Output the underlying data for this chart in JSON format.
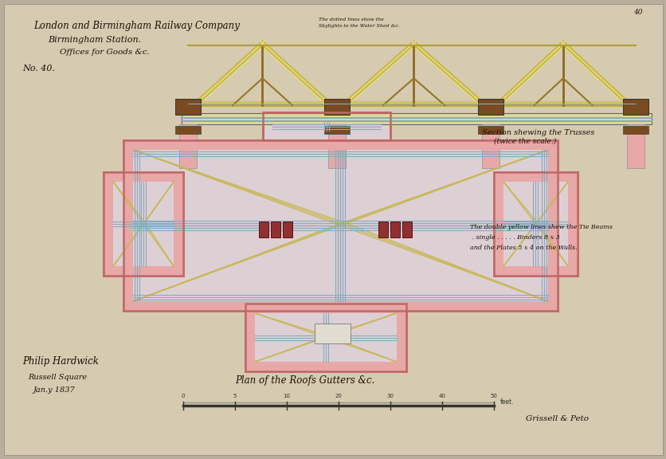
{
  "bg_color": "#b8ae9e",
  "paper_color": "#d4c9b0",
  "title1": "London and Birmingham Railway Company",
  "title2": "Birmingham Station.",
  "title3": "Offices for Goods &c.",
  "no_label": "No. 40.",
  "section_label": "Section shewing the Trusses",
  "section_sublabel": "(twice the scale.)",
  "plan_label": "Plan of the Roofs Gutters &c.",
  "signature1": "Philip Hardwick",
  "signature2": "Russell Square",
  "signature3": "Jan.y 1837",
  "signature4": "Grissell & Peto",
  "note_text": "The double yellow lines shew the Tie Beams\n . single . . . . . Binders 8 x 3\nand the Plates 5 x 4 on the Walls.",
  "pink_color": "#e8a8a8",
  "blue_color": "#88aac0",
  "yellow_color": "#c8b858",
  "brown_color": "#7a4a20",
  "truss_yellow": "#d8cc80",
  "plan_fill": "#ddd0d8"
}
